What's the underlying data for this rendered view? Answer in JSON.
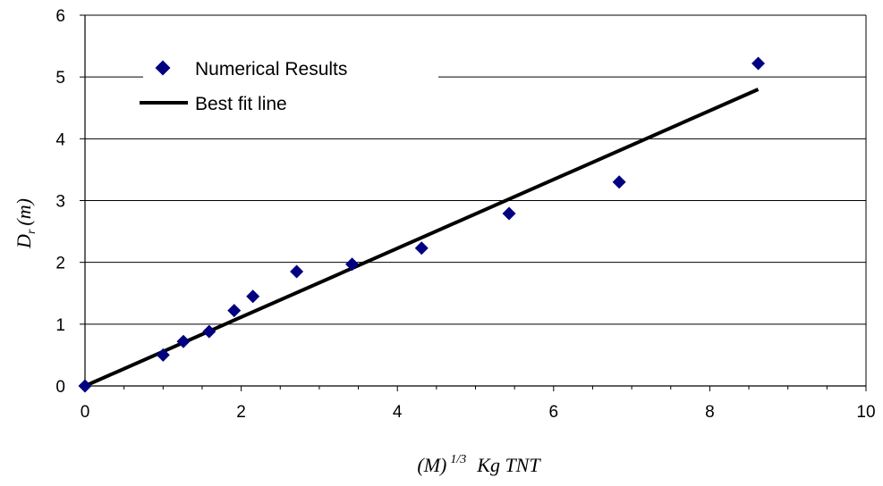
{
  "chart_data": {
    "type": "scatter",
    "xlabel": {
      "main": "(M)",
      "sup": "1/3",
      "rest": "Kg  TNT"
    },
    "ylabel": {
      "main": "D",
      "sub": "r",
      "rest": "(m)"
    },
    "xlim": [
      0,
      10
    ],
    "ylim": [
      0,
      6
    ],
    "x_ticks": [
      "0",
      "2",
      "4",
      "6",
      "8",
      "10"
    ],
    "y_ticks": [
      "0",
      "1",
      "2",
      "3",
      "4",
      "5",
      "6"
    ],
    "grid": "horizontal",
    "legend_position": "top-left",
    "series": [
      {
        "name": "Numerical Results",
        "type": "scatter",
        "marker": "diamond",
        "color": "#000080",
        "x": [
          0,
          1.0,
          1.26,
          1.59,
          1.91,
          2.15,
          2.71,
          3.42,
          4.31,
          5.43,
          6.84,
          8.62
        ],
        "y": [
          0,
          0.5,
          0.72,
          0.88,
          1.22,
          1.45,
          1.85,
          1.97,
          2.23,
          2.79,
          3.3,
          5.22
        ]
      },
      {
        "name": "Best fit line",
        "type": "line",
        "color": "#000000",
        "x": [
          0,
          8.62
        ],
        "y": [
          0,
          4.8
        ]
      }
    ]
  }
}
